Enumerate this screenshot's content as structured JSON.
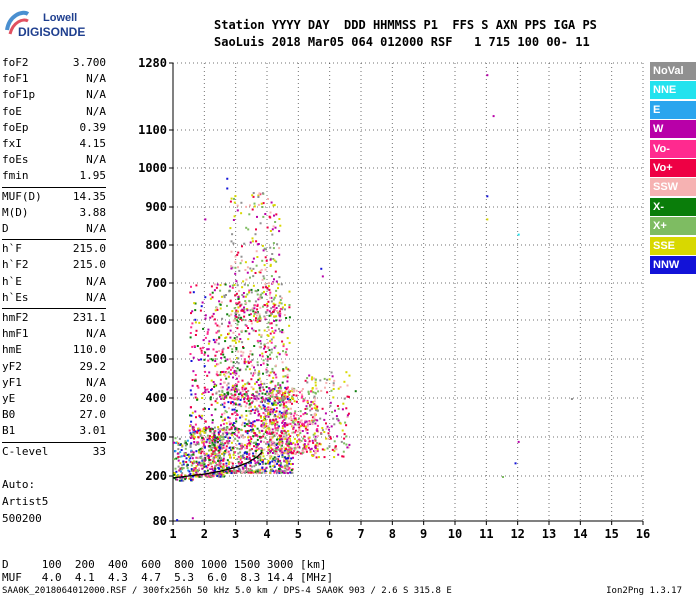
{
  "logo": {
    "line1": "Lowell",
    "line2": "DIGISONDE"
  },
  "header": {
    "line1": "Station YYYY DAY  DDD HHMMSS P1  FFS S AXN PPS IGA PS",
    "line2": "SaoLuis 2018 Mar05 064 012000 RSF   1 715 100 00- 11"
  },
  "params": [
    {
      "name": "foF2",
      "value": "3.700"
    },
    {
      "name": "foF1",
      "value": "N/A"
    },
    {
      "name": "foF1p",
      "value": "N/A"
    },
    {
      "name": "foE",
      "value": "N/A"
    },
    {
      "name": "foEp",
      "value": "0.39"
    },
    {
      "name": "fxI",
      "value": "4.15"
    },
    {
      "name": "foEs",
      "value": "N/A"
    },
    {
      "name": "fmin",
      "value": "1.95"
    },
    {
      "name": "MUF(D)",
      "value": "14.35"
    },
    {
      "name": "M(D)",
      "value": "3.88"
    },
    {
      "name": "D",
      "value": "N/A"
    },
    {
      "name": "h`F",
      "value": "215.0"
    },
    {
      "name": "h`F2",
      "value": "215.0"
    },
    {
      "name": "h`E",
      "value": "N/A"
    },
    {
      "name": "h`Es",
      "value": "N/A"
    },
    {
      "name": "hmF2",
      "value": "231.1"
    },
    {
      "name": "hmF1",
      "value": "N/A"
    },
    {
      "name": "hmE",
      "value": "110.0"
    },
    {
      "name": "yF2",
      "value": "29.2"
    },
    {
      "name": "yF1",
      "value": "N/A"
    },
    {
      "name": "yE",
      "value": "20.0"
    },
    {
      "name": "B0",
      "value": "27.0"
    },
    {
      "name": "B1",
      "value": "3.01"
    },
    {
      "name": "C-level",
      "value": "33"
    }
  ],
  "autoscale": {
    "line1": "Auto:",
    "line2": "Artist5",
    "line3": "500200"
  },
  "legend": [
    {
      "label": "NoVal",
      "bg": "#909090",
      "fg": "#ffffff"
    },
    {
      "label": "NNE",
      "bg": "#22e2ee",
      "fg": "#ffffff"
    },
    {
      "label": "E",
      "bg": "#2aa5ee",
      "fg": "#ffffff"
    },
    {
      "label": "W",
      "bg": "#b800a8",
      "fg": "#ffffff"
    },
    {
      "label": "Vo-",
      "bg": "#ff2a8f",
      "fg": "#ffffff"
    },
    {
      "label": "Vo+",
      "bg": "#ee0044",
      "fg": "#ffffff"
    },
    {
      "label": "SSW",
      "bg": "#f6b2b2",
      "fg": "#ffffff"
    },
    {
      "label": "X-",
      "bg": "#0a7d0a",
      "fg": "#ffffff"
    },
    {
      "label": "X+",
      "bg": "#7ebc62",
      "fg": "#ffffff"
    },
    {
      "label": "SSE",
      "bg": "#d8d800",
      "fg": "#ffffff"
    },
    {
      "label": "NNW",
      "bg": "#1212d8",
      "fg": "#ffffff"
    }
  ],
  "footer": {
    "d_row": "D     100  200  400  600  800 1000 1500 3000 [km]",
    "muf_row": "MUF   4.0  4.1  4.3  4.7  5.3  6.0  8.3 14.4 [MHz]",
    "file_info": "SAA0K_2018064012000.RSF / 300fx256h 50 kHz 5.0 km / DPS-4 SAA0K 903 / 2.6 S 315.8 E",
    "version": "Ion2Png 1.3.17"
  },
  "chart_data": {
    "type": "scatter",
    "x_ticks": [
      "1",
      "2",
      "3",
      "4",
      "5",
      "6",
      "7",
      "8",
      "9",
      "10",
      "11",
      "12",
      "13",
      "14",
      "15",
      "16"
    ],
    "y_ticks": [
      "80",
      "200",
      "300",
      "400",
      "500",
      "600",
      "700",
      "800",
      "900",
      "1000",
      "1100",
      "1280"
    ],
    "xlim": [
      1,
      16
    ],
    "ylim": [
      80,
      1280
    ],
    "grid": true,
    "legend_position": "right",
    "trace": {
      "x": [
        1.0,
        1.5,
        2.0,
        2.5,
        3.0,
        3.4,
        3.7,
        3.85
      ],
      "y": [
        195,
        200,
        205,
        212,
        222,
        235,
        250,
        262
      ]
    },
    "clusters": [
      {
        "x": [
          1.0,
          1.6
        ],
        "y": [
          190,
          300
        ],
        "count": 120,
        "colors": [
          "#0a7d0a",
          "#7ebc62",
          "#b800a8",
          "#ee0044",
          "#d8d800",
          "#1212d8",
          "#2aa5ee",
          "#909090"
        ]
      },
      {
        "x": [
          1.6,
          2.6
        ],
        "y": [
          200,
          330
        ],
        "count": 420,
        "colors": [
          "#0a7d0a",
          "#7ebc62",
          "#b800a8",
          "#ee0044",
          "#ff2a8f",
          "#d8d800",
          "#1212d8",
          "#909090",
          "#f6b2b2"
        ]
      },
      {
        "x": [
          2.5,
          4.8
        ],
        "y": [
          210,
          430
        ],
        "count": 900,
        "colors": [
          "#b800a8",
          "#ee0044",
          "#ff2a8f",
          "#d8d800",
          "#7ebc62",
          "#0a7d0a",
          "#f6b2b2",
          "#909090",
          "#1212d8"
        ]
      },
      {
        "x": [
          4.0,
          5.6
        ],
        "y": [
          260,
          430
        ],
        "count": 420,
        "colors": [
          "#b800a8",
          "#ee0044",
          "#ff2a8f",
          "#d8d800",
          "#f6b2b2",
          "#7ebc62"
        ]
      },
      {
        "x": [
          2.3,
          4.7
        ],
        "y": [
          400,
          700
        ],
        "count": 520,
        "colors": [
          "#d8d800",
          "#7ebc62",
          "#b800a8",
          "#ee0044",
          "#f6b2b2",
          "#0a7d0a",
          "#909090",
          "#ff2a8f"
        ]
      },
      {
        "x": [
          2.8,
          4.4
        ],
        "y": [
          600,
          940
        ],
        "count": 240,
        "colors": [
          "#d8d800",
          "#7ebc62",
          "#b800a8",
          "#f6b2b2",
          "#909090",
          "#ee0044"
        ]
      },
      {
        "x": [
          1.5,
          2.4
        ],
        "y": [
          300,
          700
        ],
        "count": 160,
        "colors": [
          "#b800a8",
          "#ee0044",
          "#ff2a8f",
          "#d8d800",
          "#1212d8",
          "#0a7d0a"
        ]
      },
      {
        "x": [
          5.2,
          6.6
        ],
        "y": [
          250,
          470
        ],
        "count": 140,
        "colors": [
          "#b800a8",
          "#d8d800",
          "#7ebc62",
          "#909090",
          "#f6b2b2",
          "#ee0044"
        ]
      }
    ],
    "outliers": [
      {
        "x": 11.0,
        "y": 1250,
        "color": "#b800a8"
      },
      {
        "x": 11.2,
        "y": 1140,
        "color": "#b800a8"
      },
      {
        "x": 11.0,
        "y": 930,
        "color": "#1212d8"
      },
      {
        "x": 11.0,
        "y": 870,
        "color": "#d8d800"
      },
      {
        "x": 12.0,
        "y": 830,
        "color": "#22e2ee"
      },
      {
        "x": 12.0,
        "y": 290,
        "color": "#b800a8"
      },
      {
        "x": 11.9,
        "y": 235,
        "color": "#1212d8"
      },
      {
        "x": 11.5,
        "y": 200,
        "color": "#7ebc62"
      },
      {
        "x": 13.7,
        "y": 400,
        "color": "#909090"
      },
      {
        "x": 2.7,
        "y": 975,
        "color": "#1212d8"
      },
      {
        "x": 2.7,
        "y": 950,
        "color": "#1212d8"
      },
      {
        "x": 5.7,
        "y": 740,
        "color": "#1212d8"
      },
      {
        "x": 5.75,
        "y": 720,
        "color": "#b800a8"
      },
      {
        "x": 2.0,
        "y": 870,
        "color": "#b800a8"
      },
      {
        "x": 6.8,
        "y": 420,
        "color": "#0a7d0a"
      },
      {
        "x": 6.6,
        "y": 460,
        "color": "#d8d800"
      },
      {
        "x": 1.1,
        "y": 85,
        "color": "#1212d8"
      },
      {
        "x": 1.6,
        "y": 90,
        "color": "#b800a8"
      }
    ]
  }
}
